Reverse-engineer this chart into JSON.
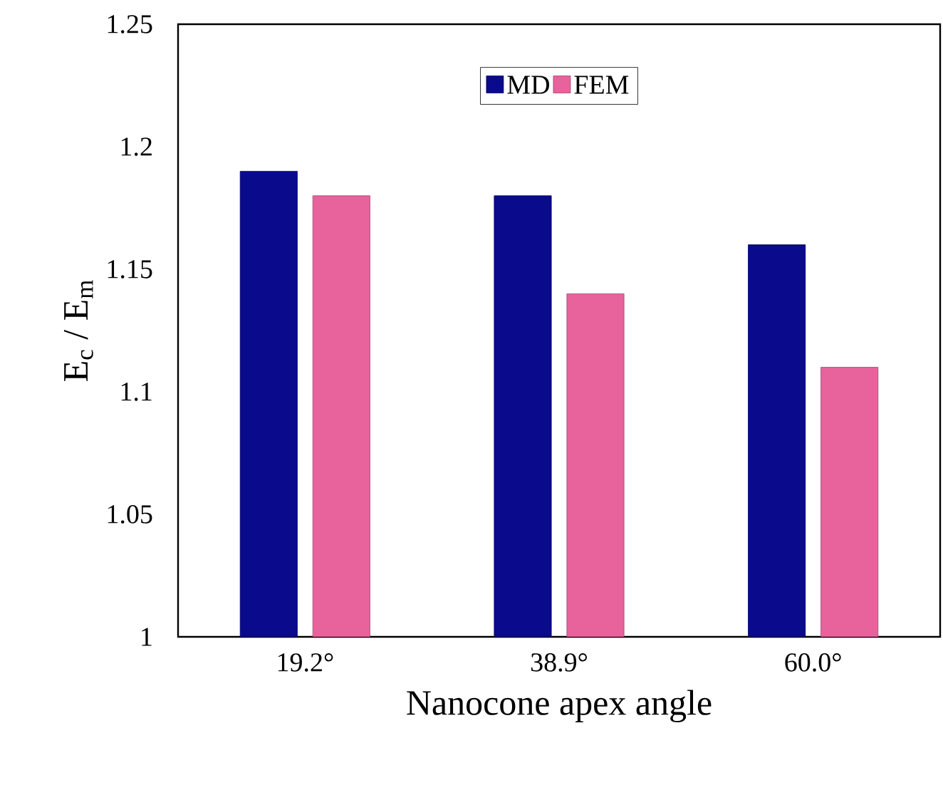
{
  "chart_data": {
    "type": "bar",
    "xlabel": "Nanocone apex angle",
    "ylabel": "E$_{c}$ / E$_{m}$",
    "categories": [
      "19.2°",
      "38.9°",
      "60.0°"
    ],
    "series": [
      {
        "name": "MD",
        "color": "#0a0a8c",
        "values": [
          1.19,
          1.18,
          1.16
        ]
      },
      {
        "name": "FEM",
        "color": "#e8629c",
        "values": [
          1.18,
          1.14,
          1.11
        ]
      }
    ],
    "ylim": [
      1,
      1.25
    ],
    "yticks": [
      1,
      1.05,
      1.1,
      1.15,
      1.2,
      1.25
    ],
    "grid": false,
    "legend": "top"
  }
}
